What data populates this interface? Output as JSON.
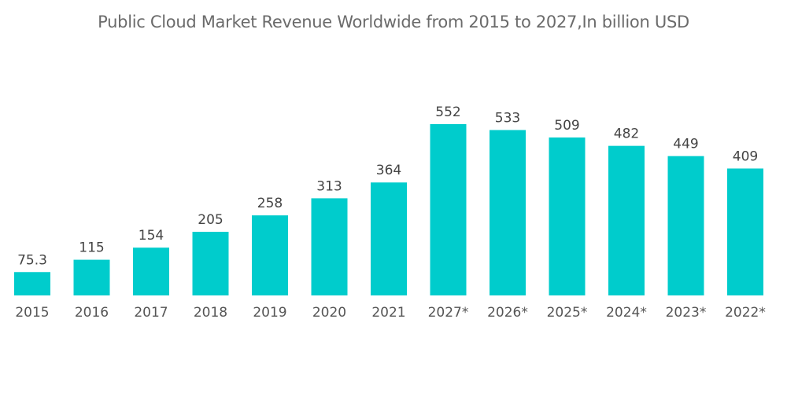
{
  "chart_data": {
    "type": "bar",
    "title": "Public Cloud Market Revenue Worldwide from 2015 to 2027,In billion USD",
    "xlabel": "",
    "ylabel": "",
    "categories": [
      "2015",
      "2016",
      "2017",
      "2018",
      "2019",
      "2020",
      "2021",
      "2027*",
      "2026*",
      "2025*",
      "2024*",
      "2023*",
      "2022*"
    ],
    "values": [
      75.3,
      115,
      154,
      205,
      258,
      313,
      364,
      552,
      533,
      509,
      482,
      449,
      409
    ],
    "data_labels": [
      "75.3",
      "115",
      "154",
      "205",
      "258",
      "313",
      "364",
      "552",
      "533",
      "509",
      "482",
      "449",
      "409"
    ],
    "ylim": [
      0,
      552
    ],
    "grid": false,
    "legend": "none",
    "bar_color": "#00cccc"
  }
}
